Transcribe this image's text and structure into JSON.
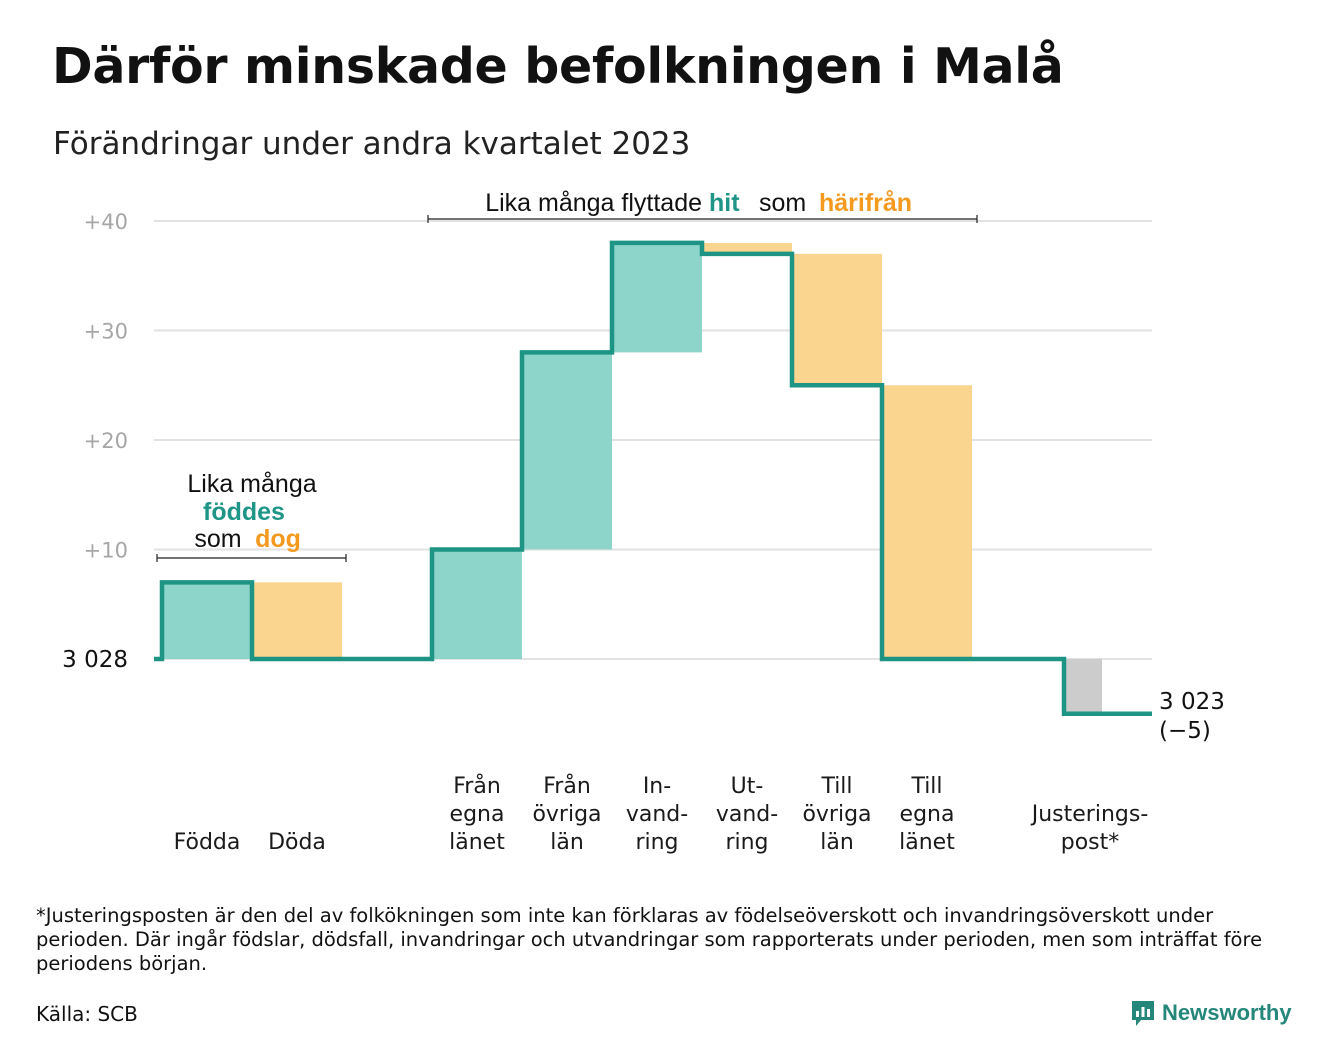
{
  "title": "Därför minskade befolkningen i Malå",
  "subtitle": "Förändringar under andra kvartalet 2023",
  "colors": {
    "inflow": "#8dd4cb",
    "outflow": "#fad58f",
    "adjustment": "#cccccc",
    "line": "#1e9584",
    "hit_text": "#1f9587",
    "from_text": "#f39a1f"
  },
  "annotations": {
    "births_deaths": {
      "line1": "Lika många",
      "born": "föddes",
      "som": "som",
      "died": "dog"
    },
    "migration": {
      "prefix": "Lika många flyttade",
      "hit": "hit",
      "som": "som",
      "from": "härifrån"
    }
  },
  "chart_data": {
    "type": "waterfall",
    "title": "Därför minskade befolkningen i Malå",
    "subtitle": "Förändringar under andra kvartalet 2023",
    "start_value": 3028,
    "start_label": "3  028",
    "end_value": 3023,
    "end_label": "3 023",
    "change_label": "(−5)",
    "y_ticks": [
      {
        "value": 10,
        "label": "+10"
      },
      {
        "value": 20,
        "label": "+20"
      },
      {
        "value": 30,
        "label": "+30"
      },
      {
        "value": 40,
        "label": "+40"
      }
    ],
    "ylim": [
      -7,
      42
    ],
    "grid": true,
    "steps": [
      {
        "lines": [
          "Födda"
        ],
        "change": 7,
        "kind": "inflow"
      },
      {
        "lines": [
          "Döda"
        ],
        "change": -7,
        "kind": "outflow"
      },
      {
        "lines": [],
        "change": 0,
        "kind": "gap"
      },
      {
        "lines": [
          "Från",
          "egna",
          "länet"
        ],
        "change": 10,
        "kind": "inflow"
      },
      {
        "lines": [
          "Från",
          "övriga",
          "län"
        ],
        "change": 18,
        "kind": "inflow"
      },
      {
        "lines": [
          "In-",
          "vand-",
          "ring"
        ],
        "change": 10,
        "kind": "inflow"
      },
      {
        "lines": [
          "Ut-",
          "vand-",
          "ring"
        ],
        "change": -1,
        "kind": "outflow"
      },
      {
        "lines": [
          "Till",
          "övriga",
          "län"
        ],
        "change": -12,
        "kind": "outflow"
      },
      {
        "lines": [
          "Till",
          "egna",
          "länet"
        ],
        "change": -25,
        "kind": "outflow"
      },
      {
        "lines": [],
        "change": 0,
        "kind": "gap"
      },
      {
        "lines": [
          "Justerings-",
          "post*"
        ],
        "change": -5,
        "kind": "adjustment"
      }
    ]
  },
  "footnote": "*Justeringsposten är den del av folkökningen som inte kan förklaras av födelseöverskott och invandringsöverskott under perioden. Där ingår födslar, dödsfall, invandringar och utvandringar som rapporterats under perioden, men som inträffat före periodens början.",
  "source": "Källa: SCB",
  "brand": "Newsworthy"
}
